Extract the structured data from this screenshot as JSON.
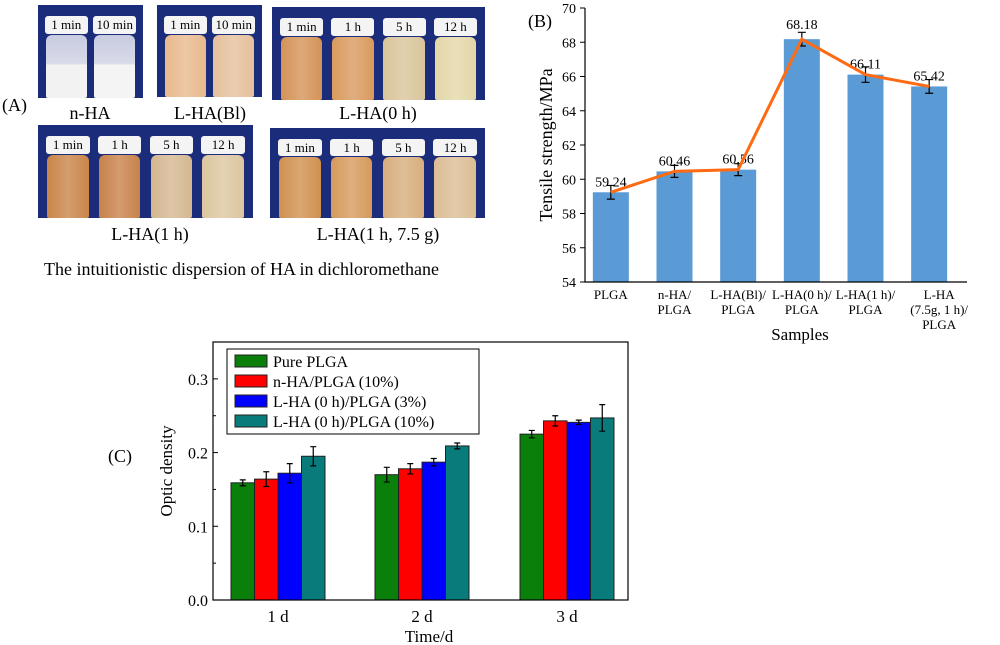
{
  "panel_a": {
    "label": "(A)",
    "caption": "The intuitionistic dispersion of HA in dichloromethane",
    "groups": [
      {
        "name": "n-HA",
        "jars": [
          {
            "time": "1 min",
            "color": "#f2f2f2"
          },
          {
            "time": "10 min",
            "color": "#f4f4f4"
          }
        ]
      },
      {
        "name": "L-HA(Bl)",
        "jars": [
          {
            "time": "1 min",
            "color": "#e8b98d"
          },
          {
            "time": "10 min",
            "color": "#e5c09c"
          }
        ]
      },
      {
        "name": "L-HA(0 h)",
        "jars": [
          {
            "time": "1 min",
            "color": "#d49358"
          },
          {
            "time": "1 h",
            "color": "#d99a5e"
          },
          {
            "time": "5 h",
            "color": "#d9c59a"
          },
          {
            "time": "12 h",
            "color": "#e3d7a8"
          }
        ]
      },
      {
        "name": "L-HA(1 h)",
        "jars": [
          {
            "time": "1 min",
            "color": "#c98548"
          },
          {
            "time": "1 h",
            "color": "#c8824a"
          },
          {
            "time": "5 h",
            "color": "#d4b791"
          },
          {
            "time": "12 h",
            "color": "#dcc6a0"
          }
        ]
      },
      {
        "name": "L-HA(1 h, 7.5 g)",
        "jars": [
          {
            "time": "1 min",
            "color": "#d0904f"
          },
          {
            "time": "1 h",
            "color": "#d69a5c"
          },
          {
            "time": "5 h",
            "color": "#d7ae7e"
          },
          {
            "time": "12 h",
            "color": "#dcbd95"
          }
        ]
      }
    ]
  },
  "chart_data": [
    {
      "panel": "(B)",
      "type": "bar",
      "ylabel": "Tensile strength/MPa",
      "xlabel": "Samples",
      "ylim": [
        54,
        70
      ],
      "yticks": [
        "54",
        "56",
        "58",
        "60",
        "62",
        "64",
        "66",
        "68",
        "70"
      ],
      "categories": [
        [
          "PLGA"
        ],
        [
          "n-HA/",
          "PLGA"
        ],
        [
          "L-HA(Bl)/",
          "PLGA"
        ],
        [
          "L-HA(0 h)/",
          "PLGA"
        ],
        [
          "L-HA(1 h)/",
          "PLGA"
        ],
        [
          "L-HA",
          "(7.5g, 1 h)/",
          "PLGA"
        ]
      ],
      "values": [
        59.24,
        60.46,
        60.56,
        68.18,
        66.11,
        65.42
      ],
      "data_labels": [
        "59.24",
        "60.46",
        "60.56",
        "68.18",
        "66.11",
        "65.42"
      ],
      "errors": [
        0.4,
        0.35,
        0.35,
        0.4,
        0.45,
        0.4
      ],
      "bar_color": "#5b9bd5",
      "line_color": "#ff6a13",
      "line_overlay": true
    },
    {
      "panel": "(C)",
      "type": "bar",
      "ylabel": "Optic density",
      "xlabel": "Time/d",
      "ylim": [
        0,
        0.35
      ],
      "yticks": [
        "0.0",
        "0.1",
        "0.2",
        "0.3"
      ],
      "categories": [
        "1 d",
        "2 d",
        "3 d"
      ],
      "legend_position": "top-left",
      "series": [
        {
          "name": "Pure PLGA",
          "color": "#0a7f0a",
          "values": [
            0.159,
            0.17,
            0.225
          ],
          "errors": [
            0.004,
            0.01,
            0.005
          ]
        },
        {
          "name": "n-HA/PLGA (10%)",
          "color": "#ff0000",
          "values": [
            0.164,
            0.178,
            0.243
          ],
          "errors": [
            0.01,
            0.007,
            0.007
          ]
        },
        {
          "name": "L-HA (0 h)/PLGA (3%)",
          "color": "#0000ff",
          "values": [
            0.172,
            0.187,
            0.241
          ],
          "errors": [
            0.013,
            0.005,
            0.003
          ]
        },
        {
          "name": "L-HA (0 h)/PLGA (10%)",
          "color": "#0a7b7b",
          "values": [
            0.195,
            0.209,
            0.247
          ],
          "errors": [
            0.013,
            0.004,
            0.018
          ]
        }
      ]
    }
  ]
}
